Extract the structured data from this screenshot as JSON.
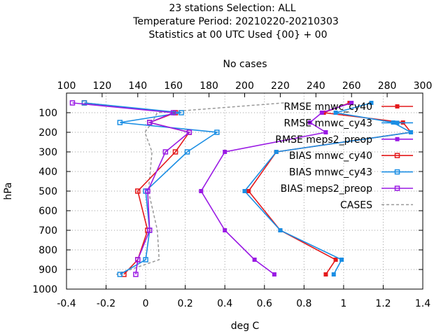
{
  "chart_data": {
    "type": "line",
    "title_lines": [
      "23 stations Selection: ALL",
      "Temperature  Period: 20210220-20210303",
      "Statistics at 00 UTC  Used {00} + 00"
    ],
    "xlabel": "deg C",
    "ylabel": "hPa",
    "x2label": "No cases",
    "xlim": [
      -0.4,
      1.4
    ],
    "ylim": [
      1000,
      0
    ],
    "x2lim": [
      100,
      300
    ],
    "xticks": [
      "-0.4",
      "-0.2",
      "0",
      "0.2",
      "0.4",
      "0.6",
      "0.8",
      "1",
      "1.2",
      "1.4"
    ],
    "yticks": [
      "100",
      "200",
      "300",
      "400",
      "500",
      "600",
      "700",
      "800",
      "900",
      "1000"
    ],
    "x2ticks": [
      "100",
      "120",
      "140",
      "160",
      "180",
      "200",
      "220",
      "240",
      "260",
      "280",
      "300"
    ],
    "levels": [
      50,
      100,
      150,
      200,
      300,
      500,
      700,
      850,
      925
    ],
    "series": [
      {
        "name": "RMSE mnwc_cy40",
        "color": "#e41a1c",
        "marker": "filled-square",
        "values": [
          1.03,
          0.9,
          1.3,
          1.34,
          0.66,
          0.52,
          0.68,
          0.96,
          0.91
        ]
      },
      {
        "name": "RMSE mnwc_cy43",
        "color": "#1a8ee4",
        "marker": "filled-square",
        "values": [
          1.14,
          0.96,
          1.25,
          1.34,
          0.66,
          0.5,
          0.68,
          0.99,
          0.95
        ]
      },
      {
        "name": "RMSE meps2_preop",
        "color": "#9a1ae4",
        "marker": "filled-square",
        "values": [
          1.04,
          0.89,
          0.83,
          0.91,
          0.4,
          0.28,
          0.4,
          0.55,
          0.65
        ]
      },
      {
        "name": "BIAS mnwc_cy40",
        "color": "#e41a1c",
        "marker": "open-square",
        "values": [
          -0.31,
          0.15,
          0.02,
          0.22,
          0.15,
          -0.04,
          0.01,
          -0.04,
          -0.11
        ]
      },
      {
        "name": "BIAS mnwc_cy43",
        "color": "#1a8ee4",
        "marker": "open-square",
        "values": [
          -0.31,
          0.18,
          -0.13,
          0.36,
          0.21,
          0.0,
          0.02,
          0.0,
          -0.13
        ]
      },
      {
        "name": "BIAS meps2_preop",
        "color": "#9a1ae4",
        "marker": "open-square",
        "values": [
          -0.37,
          0.14,
          0.02,
          0.22,
          0.1,
          0.01,
          0.02,
          -0.04,
          -0.05
        ]
      }
    ],
    "cases": {
      "name": "CASES",
      "color": "#999999",
      "style": "dashed",
      "levels": [
        50,
        100,
        150,
        200,
        300,
        500,
        700,
        850,
        925
      ],
      "values": [
        222,
        151,
        148,
        144,
        148,
        146,
        151,
        152,
        128
      ]
    }
  }
}
